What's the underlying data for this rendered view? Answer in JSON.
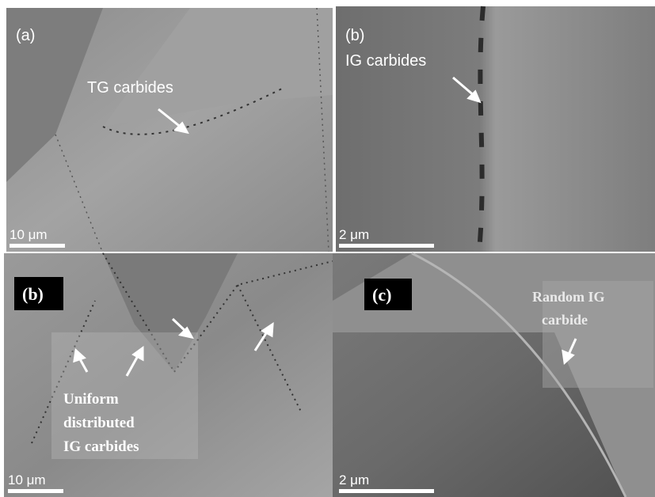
{
  "panels": [
    {
      "label": "(a)",
      "annotation": [
        "TG carbides"
      ],
      "scale_bar": "10 μm"
    },
    {
      "label": "(b)",
      "annotation": [
        "IG carbides"
      ],
      "scale_bar": "2 μm"
    },
    {
      "label": "(b)",
      "annotation": [
        "Uniform",
        "distributed",
        "IG carbides"
      ],
      "scale_bar": "10 μm"
    },
    {
      "label": "(c)",
      "annotation": [
        "Random IG",
        "carbide"
      ],
      "scale_bar": "2 μm"
    }
  ]
}
